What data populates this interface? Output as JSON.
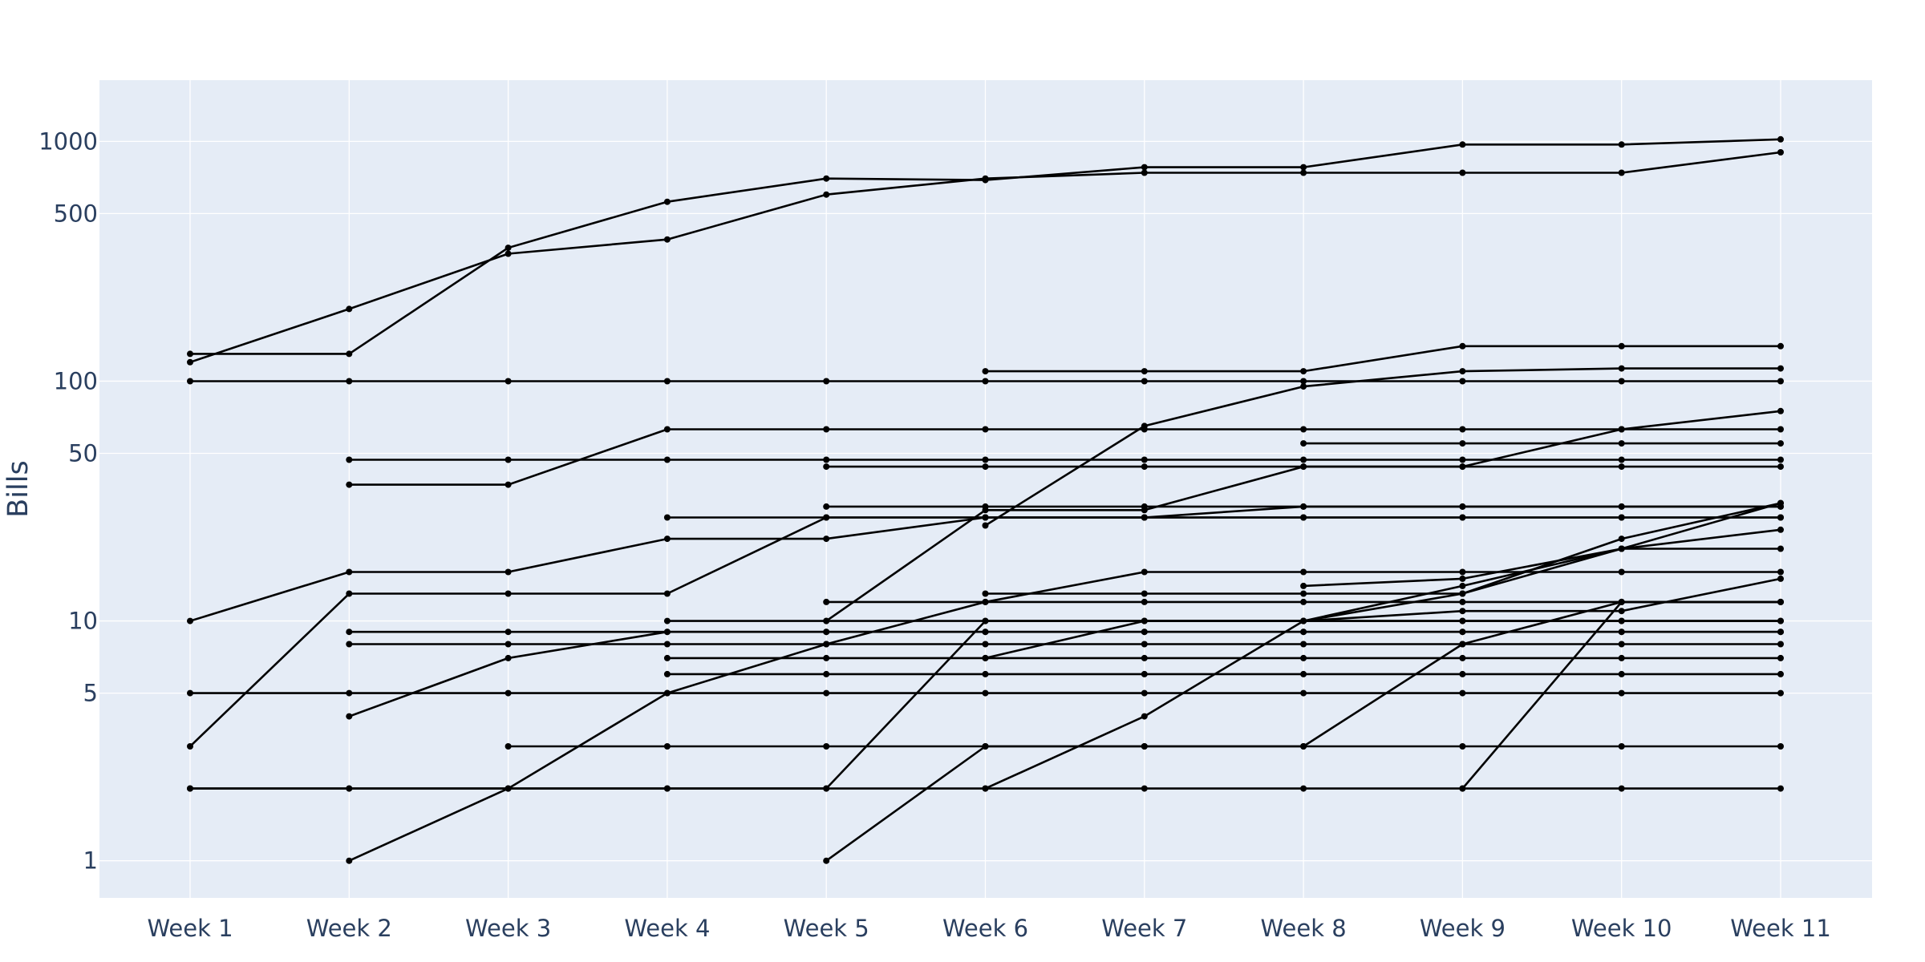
{
  "chart_data": {
    "type": "line",
    "title": "",
    "xlabel": "",
    "ylabel": "Bills",
    "yscale": "log",
    "ylim": [
      0.7,
      1800
    ],
    "grid": true,
    "legend": "none",
    "colors": {
      "plot_bg": "#e5ecf6",
      "grid": "#ffffff",
      "line": "#000000",
      "text": "#2a3f5f"
    },
    "x": [
      "Week 1",
      "Week 2",
      "Week 3",
      "Week 4",
      "Week 5",
      "Week 6",
      "Week 7",
      "Week 8",
      "Week 9",
      "Week 10",
      "Week 11"
    ],
    "y_ticks": [
      1,
      5,
      10,
      50,
      100,
      500,
      1000
    ],
    "series": [
      {
        "values": [
          120,
          200,
          340,
          390,
          600,
          700,
          740,
          740,
          740,
          740,
          900
        ]
      },
      {
        "values": [
          130,
          130,
          360,
          560,
          700,
          690,
          780,
          780,
          970,
          970,
          1020
        ]
      },
      {
        "values": [
          100,
          100,
          100,
          100,
          100,
          100,
          100,
          100,
          100,
          100,
          100
        ]
      },
      {
        "values": [
          null,
          null,
          null,
          null,
          null,
          110,
          110,
          110,
          140,
          140,
          140
        ]
      },
      {
        "values": [
          null,
          null,
          null,
          null,
          null,
          25,
          65,
          95,
          110,
          113,
          113
        ]
      },
      {
        "values": [
          null,
          47,
          47,
          47,
          47,
          47,
          47,
          47,
          47,
          47,
          47
        ]
      },
      {
        "values": [
          null,
          37,
          37,
          63,
          63,
          63,
          63,
          63,
          63,
          63,
          63
        ]
      },
      {
        "values": [
          null,
          null,
          null,
          null,
          44,
          44,
          44,
          44,
          44,
          63,
          75
        ]
      },
      {
        "values": [
          null,
          null,
          null,
          null,
          null,
          null,
          null,
          55,
          55,
          55,
          55
        ]
      },
      {
        "values": [
          null,
          null,
          null,
          null,
          30,
          30,
          30,
          30,
          30,
          30,
          30
        ]
      },
      {
        "values": [
          null,
          null,
          null,
          27,
          27,
          27,
          27,
          30,
          30,
          30,
          30
        ]
      },
      {
        "values": [
          null,
          null,
          null,
          null,
          10,
          29,
          29,
          44,
          44,
          44,
          44
        ]
      },
      {
        "values": [
          10,
          16,
          16,
          22,
          22,
          27,
          27,
          27,
          27,
          27,
          27
        ]
      },
      {
        "values": [
          3,
          13,
          13,
          13,
          27,
          27,
          27,
          27,
          27,
          27,
          27
        ]
      },
      {
        "values": [
          null,
          null,
          null,
          null,
          12,
          12,
          16,
          16,
          16,
          16,
          16
        ]
      },
      {
        "values": [
          null,
          null,
          null,
          null,
          null,
          13,
          13,
          13,
          13,
          20,
          20
        ]
      },
      {
        "values": [
          null,
          null,
          null,
          null,
          null,
          null,
          null,
          14,
          15,
          20,
          24
        ]
      },
      {
        "values": [
          null,
          null,
          null,
          null,
          null,
          7,
          10,
          10,
          13,
          22,
          31
        ]
      },
      {
        "values": [
          null,
          null,
          null,
          null,
          null,
          null,
          null,
          10,
          11,
          11,
          15
        ]
      },
      {
        "values": [
          null,
          null,
          null,
          null,
          1,
          3,
          3,
          3,
          8,
          12,
          12
        ]
      },
      {
        "values": [
          null,
          null,
          null,
          10,
          10,
          10,
          10,
          10,
          10,
          10,
          10
        ]
      },
      {
        "values": [
          null,
          9,
          9,
          9,
          9,
          9,
          9,
          9,
          9,
          9,
          9
        ]
      },
      {
        "values": [
          null,
          8,
          8,
          8,
          8,
          8,
          8,
          8,
          8,
          8,
          8
        ]
      },
      {
        "values": [
          null,
          4,
          7,
          9,
          9,
          9,
          9,
          9,
          9,
          9,
          9
        ]
      },
      {
        "values": [
          null,
          null,
          null,
          7,
          7,
          7,
          7,
          7,
          7,
          7,
          7
        ]
      },
      {
        "values": [
          null,
          null,
          null,
          6,
          6,
          6,
          6,
          6,
          6,
          6,
          6
        ]
      },
      {
        "values": [
          5,
          5,
          5,
          5,
          5,
          5,
          5,
          5,
          5,
          5,
          5
        ]
      },
      {
        "values": [
          null,
          1,
          2,
          5,
          8,
          12,
          12,
          12,
          12,
          12,
          12
        ]
      },
      {
        "values": [
          null,
          null,
          3,
          3,
          3,
          3,
          3,
          3,
          3,
          3,
          3
        ]
      },
      {
        "values": [
          null,
          null,
          null,
          null,
          null,
          2,
          4,
          10,
          14,
          20,
          31
        ]
      },
      {
        "values": [
          2,
          2,
          2,
          2,
          2,
          10,
          10,
          10,
          10,
          10,
          10
        ]
      },
      {
        "values": [
          2,
          2,
          2,
          2,
          2,
          2,
          2,
          2,
          2,
          2,
          2
        ]
      },
      {
        "values": [
          null,
          null,
          null,
          null,
          null,
          null,
          null,
          null,
          2,
          12,
          12
        ]
      }
    ]
  }
}
